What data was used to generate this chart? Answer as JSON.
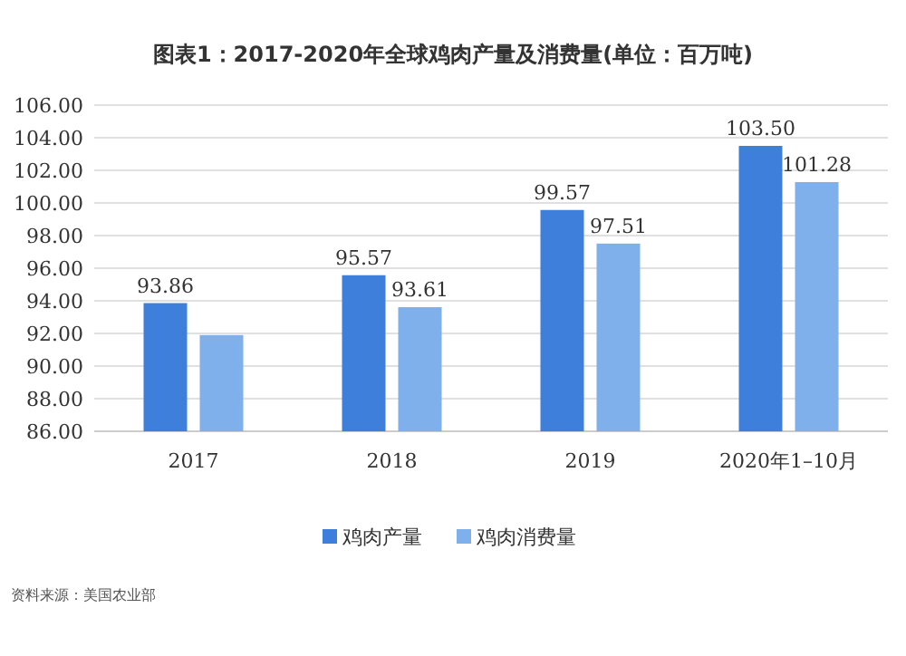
{
  "chart_data": {
    "type": "bar",
    "title": "图表1：2017-2020年全球鸡肉产量及消费量(单位：百万吨)",
    "categories": [
      "2017",
      "2018",
      "2019",
      "2020年1–10月"
    ],
    "series": [
      {
        "name": "鸡肉产量",
        "color": "#3f7fdc",
        "values": [
          93.86,
          95.57,
          99.57,
          103.5
        ],
        "value_labels": [
          "93.86",
          "95.57",
          "99.57",
          "103.50"
        ]
      },
      {
        "name": "鸡肉消费量",
        "color": "#7fb0ec",
        "values": [
          91.9,
          93.61,
          97.51,
          101.28
        ],
        "value_labels": [
          null,
          "93.61",
          "97.51",
          "101.28"
        ]
      }
    ],
    "ylim": [
      86,
      106
    ],
    "yticks": [
      {
        "value": 86,
        "label": "86.00"
      },
      {
        "value": 88,
        "label": "88.00"
      },
      {
        "value": 90,
        "label": "90.00"
      },
      {
        "value": 92,
        "label": "92.00"
      },
      {
        "value": 94,
        "label": "94.00"
      },
      {
        "value": 96,
        "label": "96.00"
      },
      {
        "value": 98,
        "label": "98.00"
      },
      {
        "value": 100,
        "label": "100.00"
      },
      {
        "value": 102,
        "label": "102.00"
      },
      {
        "value": 104,
        "label": "104.00"
      },
      {
        "value": 106,
        "label": "106.00"
      }
    ],
    "grid": "y",
    "legend": "bottom",
    "annotations": [
      "资料来源：美国农业部"
    ]
  }
}
